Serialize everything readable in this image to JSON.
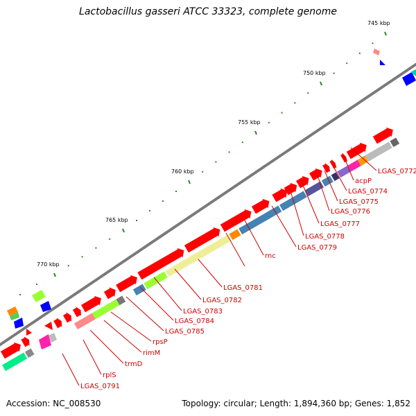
{
  "title": "Lactobacillus gasseri ATCC 33323, complete genome",
  "footer": {
    "accession": "Accession: NC_008530",
    "summary": "Topology: circular; Length: 1,894,360 bp; Genes: 1,852"
  },
  "scale_labels": [
    "745 kbp",
    "750 kbp",
    "755 kbp",
    "760 kbp",
    "765 kbp",
    "770 kbp"
  ],
  "gene_labels": [
    "LGAS_0772",
    "acpP",
    "LGAS_0774",
    "LGAS_0775",
    "LGAS_0776",
    "LGAS_0777",
    "LGAS_0778",
    "LGAS_0779",
    "rnc",
    "LGAS_0781",
    "LGAS_0782",
    "LGAS_0783",
    "LGAS_0784",
    "LGAS_0785",
    "rpsP",
    "rimM",
    "trmD",
    "rplS",
    "LGAS_0791"
  ],
  "colors": {
    "backbone": "#7a7a7a",
    "cds": "#ff0000",
    "cog_blue": "#4682b4",
    "cog_green": "#99ff33",
    "cog_pale": "#eeee99",
    "cog_grey": "#bbbbbb",
    "cog_pink": "#ff8888",
    "label": "#cc0000",
    "tick": "#228822"
  }
}
